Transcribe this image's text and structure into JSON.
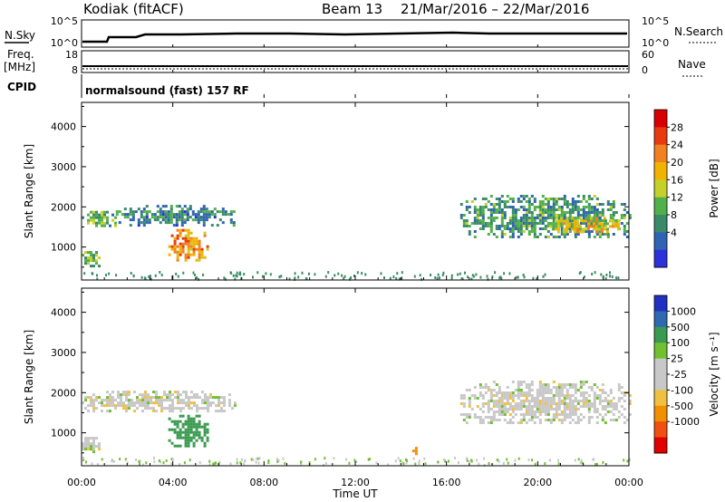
{
  "header": {
    "station": "Kodiak (fitACF)",
    "beam": "Beam 13",
    "date_range": "21/Mar/2016 – 22/Mar/2016"
  },
  "strips": {
    "nsky_label": "N.Sky",
    "nsky_ticks": [
      "10^5",
      "10^0"
    ],
    "nsearch_label": "N.Search",
    "nsearch_ticks": [
      "10^5",
      "10^0"
    ],
    "freq_label": "Freq.",
    "freq_unit": "[MHz]",
    "freq_ticks": [
      "18",
      "8"
    ],
    "nave_label": "Nave",
    "nave_ticks": [
      "60",
      "0"
    ],
    "cpid_label": "CPID",
    "cpid_value": "normalsound (fast) 157 RF"
  },
  "colors": {
    "power": [
      "#2a32d8",
      "#2f63b4",
      "#3a8a6a",
      "#52b04a",
      "#c6d02a",
      "#f0b400",
      "#f08020",
      "#e83a10",
      "#d80000"
    ],
    "velocity": [
      "#e00000",
      "#f05010",
      "#f09000",
      "#f0c040",
      "#c8c8c8",
      "#c8c8c8",
      "#70c030",
      "#3a9a50",
      "#2f6ab0",
      "#2030c0"
    ]
  },
  "chart_data": [
    {
      "type": "heatmap",
      "panel": "power",
      "ylabel": "Slant Range [km]",
      "yticks": [
        1000,
        2000,
        3000,
        4000
      ],
      "ylim": [
        180,
        4600
      ],
      "xlim_hours": [
        0,
        24
      ],
      "colorbar_label": "Power [dB]",
      "colorbar_ticks": [
        "28",
        "24",
        "20",
        "16",
        "12",
        "8",
        "4"
      ],
      "colorbar_range": [
        0,
        32
      ],
      "regions": [
        {
          "t": [
            0.0,
            1.5
          ],
          "r": [
            1550,
            1900
          ],
          "val": 12
        },
        {
          "t": [
            1.5,
            6.7
          ],
          "r": [
            1550,
            2050
          ],
          "val": 8
        },
        {
          "t": [
            3.8,
            5.5
          ],
          "r": [
            700,
            1450
          ],
          "val": 22
        },
        {
          "t": [
            0.0,
            0.8
          ],
          "r": [
            550,
            900
          ],
          "val": 12
        },
        {
          "t": [
            16.6,
            24.0
          ],
          "r": [
            1250,
            2300
          ],
          "val": 10
        },
        {
          "t": [
            20.5,
            23.5
          ],
          "r": [
            1350,
            1750
          ],
          "val": 18
        }
      ]
    },
    {
      "type": "heatmap",
      "panel": "velocity",
      "ylabel": "Slant Range [km]",
      "yticks": [
        1000,
        2000,
        3000,
        4000
      ],
      "ylim": [
        180,
        4600
      ],
      "xlim_hours": [
        0,
        24
      ],
      "xticks": [
        "00:00",
        "04:00",
        "08:00",
        "12:00",
        "16:00",
        "20:00",
        "00:00"
      ],
      "xlabel": "Time UT",
      "colorbar_label": "Velocity [m s^-1]",
      "colorbar_ticks": [
        "1000",
        "500",
        "100",
        "25",
        "-25",
        "-100",
        "-500",
        "-1000"
      ],
      "regions": [
        {
          "t": [
            0.0,
            6.7
          ],
          "r": [
            1550,
            2050
          ],
          "val": 0
        },
        {
          "t": [
            3.8,
            5.5
          ],
          "r": [
            700,
            1450
          ],
          "val": 150
        },
        {
          "t": [
            0.0,
            0.8
          ],
          "r": [
            550,
            900
          ],
          "val": 0
        },
        {
          "t": [
            16.6,
            24.0
          ],
          "r": [
            1250,
            2300
          ],
          "val": 0
        },
        {
          "t": [
            14.5,
            14.8
          ],
          "r": [
            500,
            650
          ],
          "val": -300
        }
      ]
    }
  ]
}
